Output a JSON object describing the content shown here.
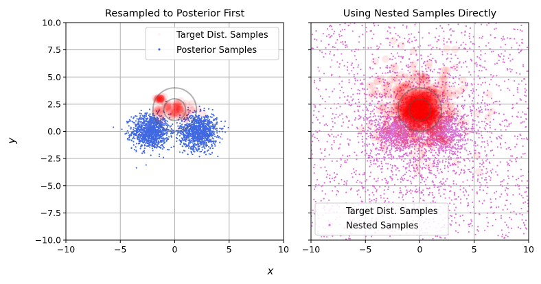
{
  "figure": {
    "xlabel": "x",
    "ylabel": "y",
    "colors": {
      "posterior": "#4169e1",
      "nested": "#da70d6",
      "target": "#ff0000",
      "grid": "#b0b0b0"
    }
  },
  "chart_data": [
    {
      "type": "scatter",
      "title": "Resampled to Posterior First",
      "xlim": [
        -10,
        10
      ],
      "ylim": [
        -10,
        10
      ],
      "xticks": [
        -10,
        -5,
        0,
        5,
        10
      ],
      "yticks": [
        -10.0,
        -7.5,
        -5.0,
        -2.5,
        0.0,
        2.5,
        5.0,
        7.5,
        10.0
      ],
      "xtick_labels": [
        "−10",
        "−5",
        "0",
        "5",
        "10"
      ],
      "ytick_labels": [
        "−10.0",
        "−7.5",
        "−5.0",
        "−2.5",
        "0.0",
        "2.5",
        "5.0",
        "7.5",
        "10.0"
      ],
      "grid": true,
      "legend": {
        "position": "top-right",
        "entries": [
          "Target Dist. Samples",
          "Posterior Samples"
        ]
      },
      "series": [
        {
          "name": "Posterior Samples",
          "color": "#4169e1",
          "clusters": [
            {
              "cx": -2.2,
              "cy": 0.0,
              "sx": 0.85,
              "sy": 0.8,
              "n": 1100
            },
            {
              "cx": 2.2,
              "cy": 0.0,
              "sx": 0.85,
              "sy": 0.8,
              "n": 1100
            }
          ]
        },
        {
          "name": "Target Dist. Samples",
          "color": "#ff0000",
          "clusters": [
            {
              "cx": 0.0,
              "cy": 2.0,
              "sx": 1.0,
              "sy": 0.45,
              "n": 90
            },
            {
              "cx": -1.4,
              "cy": 3.0,
              "sx": 0.12,
              "sy": 0.08,
              "n": 25
            }
          ]
        }
      ],
      "circles": [
        {
          "cx": 0,
          "cy": 2,
          "r": 1,
          "color": "#555555"
        },
        {
          "cx": 0,
          "cy": 2,
          "r": 2,
          "color": "#555555"
        }
      ]
    },
    {
      "type": "scatter",
      "title": "Using Nested Samples Directly",
      "xlim": [
        -10,
        10
      ],
      "ylim": [
        -10,
        10
      ],
      "xticks": [
        -10,
        -5,
        0,
        5,
        10
      ],
      "yticks": [
        -10.0,
        -7.5,
        -5.0,
        -2.5,
        0.0,
        2.5,
        5.0,
        7.5,
        10.0
      ],
      "xtick_labels": [
        "−10",
        "−5",
        "0",
        "5",
        "10"
      ],
      "grid": true,
      "legend": {
        "position": "bottom-left",
        "entries": [
          "Target Dist. Samples",
          "Nested Samples"
        ]
      },
      "series": [
        {
          "name": "Nested Samples",
          "color": "#da70d6",
          "uniform": {
            "xlim": [
              -10,
              10
            ],
            "ylim": [
              -10,
              10
            ],
            "n": 1500
          },
          "clusters": [
            {
              "cx": 0.0,
              "cy": 0.0,
              "sx": 3.2,
              "sy": 3.2,
              "n": 1300
            },
            {
              "cx": -2.0,
              "cy": 0.0,
              "sx": 1.0,
              "sy": 0.9,
              "n": 650
            },
            {
              "cx": 2.0,
              "cy": 0.0,
              "sx": 1.0,
              "sy": 0.9,
              "n": 650
            }
          ]
        },
        {
          "name": "Target Dist. Samples",
          "color": "#ff0000",
          "clusters": [
            {
              "cx": 0.0,
              "cy": 2.0,
              "sx": 0.9,
              "sy": 0.9,
              "n": 650
            },
            {
              "cx": 0.0,
              "cy": 2.0,
              "sx": 2.0,
              "sy": 2.0,
              "n": 350
            }
          ]
        }
      ],
      "circles": [
        {
          "cx": 0,
          "cy": 2,
          "r": 1,
          "color": "#555555"
        },
        {
          "cx": 0,
          "cy": 2,
          "r": 2,
          "color": "#555555"
        }
      ]
    }
  ]
}
